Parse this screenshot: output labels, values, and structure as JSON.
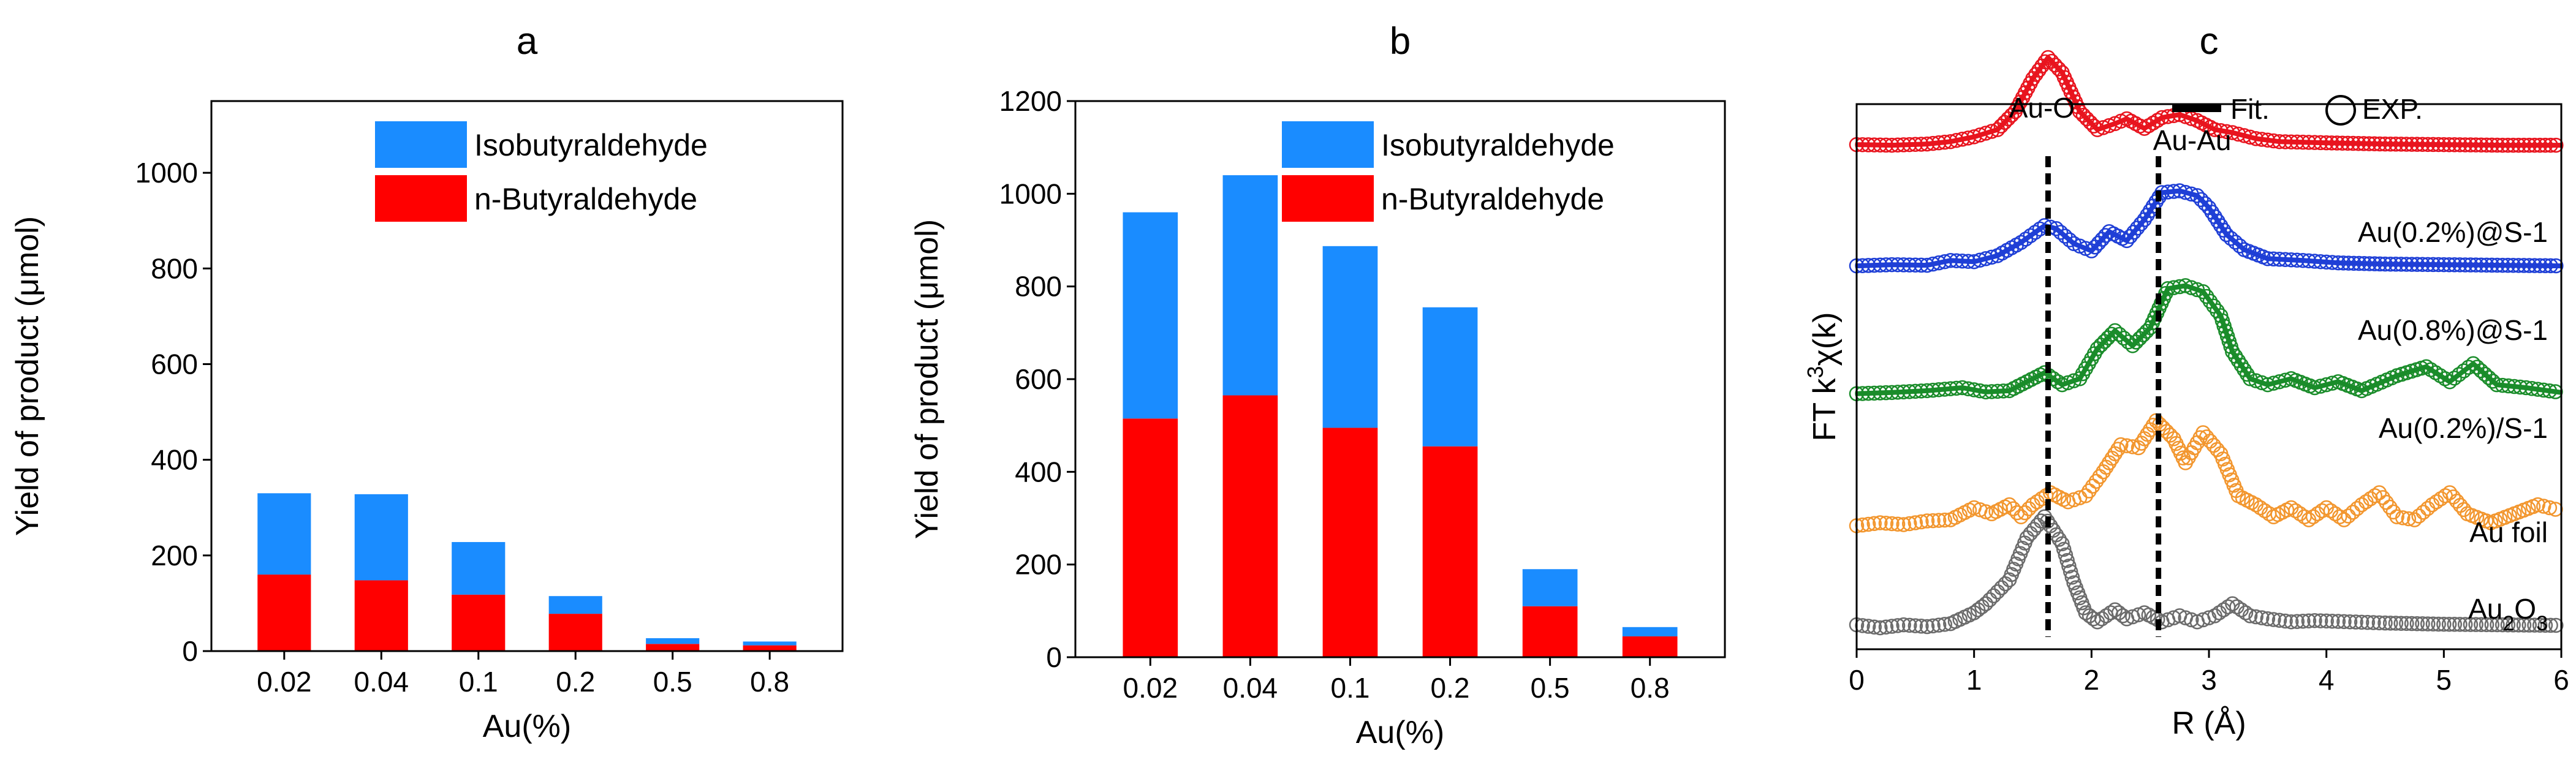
{
  "chart_data": [
    {
      "type": "bar",
      "stacked": true,
      "panel": "a",
      "categories": [
        "0.02",
        "0.04",
        "0.1",
        "0.2",
        "0.5",
        "0.8"
      ],
      "series": [
        {
          "name": "n-Butyraldehyde",
          "color": "#ff0000",
          "values": [
            160,
            148,
            118,
            78,
            15,
            12
          ]
        },
        {
          "name": "Isobutyraldehyde",
          "color": "#1a8cff",
          "values": [
            170,
            180,
            110,
            37,
            12,
            8
          ]
        }
      ],
      "legend_order": [
        "Isobutyraldehyde",
        "n-Butyraldehyde"
      ],
      "xlabel": "Au(%)",
      "ylabel": "Yield of product (μmol)",
      "ylim": [
        0,
        1150
      ],
      "yticks": [
        0,
        200,
        400,
        600,
        800,
        1000
      ],
      "legend_position": "top-right"
    },
    {
      "type": "bar",
      "stacked": true,
      "panel": "b",
      "categories": [
        "0.02",
        "0.04",
        "0.1",
        "0.2",
        "0.5",
        "0.8"
      ],
      "series": [
        {
          "name": "n-Butyraldehyde",
          "color": "#ff0000",
          "values": [
            515,
            565,
            495,
            455,
            110,
            45
          ]
        },
        {
          "name": "Isobutyraldehyde",
          "color": "#1a8cff",
          "values": [
            445,
            475,
            392,
            300,
            80,
            20
          ]
        }
      ],
      "legend_order": [
        "Isobutyraldehyde",
        "n-Butyraldehyde"
      ],
      "xlabel": "Au(%)",
      "ylabel": "Yield of product (μmol)",
      "ylim": [
        0,
        1200
      ],
      "yticks": [
        0,
        200,
        400,
        600,
        800,
        1000,
        1200
      ],
      "legend_position": "top-right"
    },
    {
      "type": "line",
      "panel": "c",
      "xlabel": "R (Å)",
      "ylabel_prefix": "FT k",
      "ylabel_sup": "3",
      "ylabel_suffix": "χ(k)",
      "xlim": [
        0,
        6
      ],
      "xticks": [
        0,
        1,
        2,
        3,
        4,
        5,
        6
      ],
      "yrange": [
        0,
        10
      ],
      "legend": {
        "fit": "Fit.",
        "exp": "EXP."
      },
      "annotations": [
        {
          "text": "Au-O",
          "x": 1.63
        },
        {
          "text": "Au-Au",
          "x": 2.57
        }
      ],
      "series": [
        {
          "name": "Au(0.2%)@S-1",
          "sub": "",
          "color": "#e8141e",
          "offset": 8.0,
          "has_fit": true,
          "points": [
            [
              0,
              0.05
            ],
            [
              0.3,
              0.04
            ],
            [
              0.6,
              0.06
            ],
            [
              0.8,
              0.1
            ],
            [
              1.0,
              0.18
            ],
            [
              1.2,
              0.3
            ],
            [
              1.35,
              0.6
            ],
            [
              1.5,
              1.15
            ],
            [
              1.63,
              1.5
            ],
            [
              1.75,
              1.25
            ],
            [
              1.9,
              0.6
            ],
            [
              2.05,
              0.3
            ],
            [
              2.2,
              0.4
            ],
            [
              2.3,
              0.48
            ],
            [
              2.45,
              0.32
            ],
            [
              2.6,
              0.5
            ],
            [
              2.75,
              0.55
            ],
            [
              2.9,
              0.45
            ],
            [
              3.05,
              0.3
            ],
            [
              3.2,
              0.25
            ],
            [
              3.4,
              0.15
            ],
            [
              3.6,
              0.1
            ],
            [
              3.8,
              0.09
            ],
            [
              4.0,
              0.08
            ],
            [
              4.5,
              0.06
            ],
            [
              5.0,
              0.05
            ],
            [
              5.5,
              0.04
            ],
            [
              6.0,
              0.04
            ]
          ]
        },
        {
          "name": "Au(0.8%)@S-1",
          "sub": "",
          "color": "#1f3fd6",
          "offset": 6.0,
          "has_fit": true,
          "points": [
            [
              0,
              0.03
            ],
            [
              0.3,
              0.05
            ],
            [
              0.6,
              0.04
            ],
            [
              0.8,
              0.12
            ],
            [
              1.0,
              0.1
            ],
            [
              1.2,
              0.2
            ],
            [
              1.4,
              0.42
            ],
            [
              1.6,
              0.7
            ],
            [
              1.7,
              0.65
            ],
            [
              1.85,
              0.4
            ],
            [
              2.0,
              0.28
            ],
            [
              2.15,
              0.6
            ],
            [
              2.3,
              0.45
            ],
            [
              2.45,
              0.8
            ],
            [
              2.6,
              1.25
            ],
            [
              2.75,
              1.28
            ],
            [
              2.9,
              1.2
            ],
            [
              3.0,
              1.0
            ],
            [
              3.15,
              0.55
            ],
            [
              3.3,
              0.3
            ],
            [
              3.5,
              0.15
            ],
            [
              3.8,
              0.12
            ],
            [
              4.1,
              0.08
            ],
            [
              4.5,
              0.06
            ],
            [
              5.0,
              0.05
            ],
            [
              5.5,
              0.04
            ],
            [
              6.0,
              0.03
            ]
          ]
        },
        {
          "name": "Au(0.2%)/S-1",
          "sub": "",
          "color": "#1a8c2a",
          "offset": 3.9,
          "has_fit": true,
          "points": [
            [
              0,
              0.0
            ],
            [
              0.3,
              0.02
            ],
            [
              0.6,
              0.05
            ],
            [
              0.9,
              0.1
            ],
            [
              1.1,
              0.03
            ],
            [
              1.3,
              0.05
            ],
            [
              1.45,
              0.2
            ],
            [
              1.6,
              0.35
            ],
            [
              1.75,
              0.15
            ],
            [
              1.9,
              0.25
            ],
            [
              2.05,
              0.75
            ],
            [
              2.2,
              1.05
            ],
            [
              2.35,
              0.8
            ],
            [
              2.5,
              1.1
            ],
            [
              2.65,
              1.75
            ],
            [
              2.8,
              1.8
            ],
            [
              2.95,
              1.7
            ],
            [
              3.1,
              1.3
            ],
            [
              3.2,
              0.7
            ],
            [
              3.35,
              0.25
            ],
            [
              3.5,
              0.15
            ],
            [
              3.7,
              0.25
            ],
            [
              3.9,
              0.1
            ],
            [
              4.1,
              0.2
            ],
            [
              4.3,
              0.05
            ],
            [
              4.6,
              0.3
            ],
            [
              4.85,
              0.45
            ],
            [
              5.05,
              0.2
            ],
            [
              5.25,
              0.5
            ],
            [
              5.45,
              0.15
            ],
            [
              5.7,
              0.1
            ],
            [
              6.0,
              0.02
            ]
          ]
        },
        {
          "name": "Au foil",
          "sub": "",
          "color": "#f2962e",
          "offset": 1.7,
          "has_fit": false,
          "points": [
            [
              0,
              0.0
            ],
            [
              0.2,
              0.05
            ],
            [
              0.4,
              0.02
            ],
            [
              0.6,
              0.08
            ],
            [
              0.8,
              0.1
            ],
            [
              1.0,
              0.3
            ],
            [
              1.15,
              0.2
            ],
            [
              1.3,
              0.35
            ],
            [
              1.4,
              0.15
            ],
            [
              1.5,
              0.35
            ],
            [
              1.65,
              0.55
            ],
            [
              1.8,
              0.4
            ],
            [
              1.95,
              0.5
            ],
            [
              2.1,
              0.9
            ],
            [
              2.25,
              1.35
            ],
            [
              2.4,
              1.3
            ],
            [
              2.55,
              1.75
            ],
            [
              2.7,
              1.45
            ],
            [
              2.8,
              1.05
            ],
            [
              2.95,
              1.55
            ],
            [
              3.1,
              1.2
            ],
            [
              3.25,
              0.5
            ],
            [
              3.4,
              0.35
            ],
            [
              3.55,
              0.15
            ],
            [
              3.7,
              0.3
            ],
            [
              3.85,
              0.1
            ],
            [
              4.0,
              0.3
            ],
            [
              4.15,
              0.1
            ],
            [
              4.3,
              0.35
            ],
            [
              4.45,
              0.55
            ],
            [
              4.6,
              0.15
            ],
            [
              4.75,
              0.1
            ],
            [
              4.9,
              0.35
            ],
            [
              5.05,
              0.55
            ],
            [
              5.2,
              0.2
            ],
            [
              5.4,
              0.05
            ],
            [
              5.6,
              0.2
            ],
            [
              5.8,
              0.35
            ],
            [
              6.0,
              0.25
            ]
          ]
        },
        {
          "name": "Au",
          "sub": "2",
          "name2": "O",
          "sub2": "3",
          "color": "#6b6b6b",
          "offset": 0.0,
          "has_fit": false,
          "points": [
            [
              0,
              0.05
            ],
            [
              0.2,
              0.0
            ],
            [
              0.4,
              0.05
            ],
            [
              0.6,
              0.02
            ],
            [
              0.8,
              0.07
            ],
            [
              1.0,
              0.25
            ],
            [
              1.1,
              0.4
            ],
            [
              1.3,
              0.8
            ],
            [
              1.45,
              1.5
            ],
            [
              1.6,
              1.85
            ],
            [
              1.75,
              1.4
            ],
            [
              1.85,
              0.75
            ],
            [
              1.95,
              0.25
            ],
            [
              2.05,
              0.1
            ],
            [
              2.2,
              0.3
            ],
            [
              2.3,
              0.15
            ],
            [
              2.45,
              0.25
            ],
            [
              2.6,
              0.1
            ],
            [
              2.75,
              0.2
            ],
            [
              2.9,
              0.1
            ],
            [
              3.05,
              0.2
            ],
            [
              3.2,
              0.4
            ],
            [
              3.35,
              0.2
            ],
            [
              3.5,
              0.15
            ],
            [
              3.7,
              0.1
            ],
            [
              3.9,
              0.12
            ],
            [
              4.2,
              0.1
            ],
            [
              4.5,
              0.08
            ],
            [
              5.0,
              0.06
            ],
            [
              5.5,
              0.05
            ],
            [
              6.0,
              0.04
            ]
          ]
        }
      ],
      "legend_position": "top-right"
    }
  ]
}
